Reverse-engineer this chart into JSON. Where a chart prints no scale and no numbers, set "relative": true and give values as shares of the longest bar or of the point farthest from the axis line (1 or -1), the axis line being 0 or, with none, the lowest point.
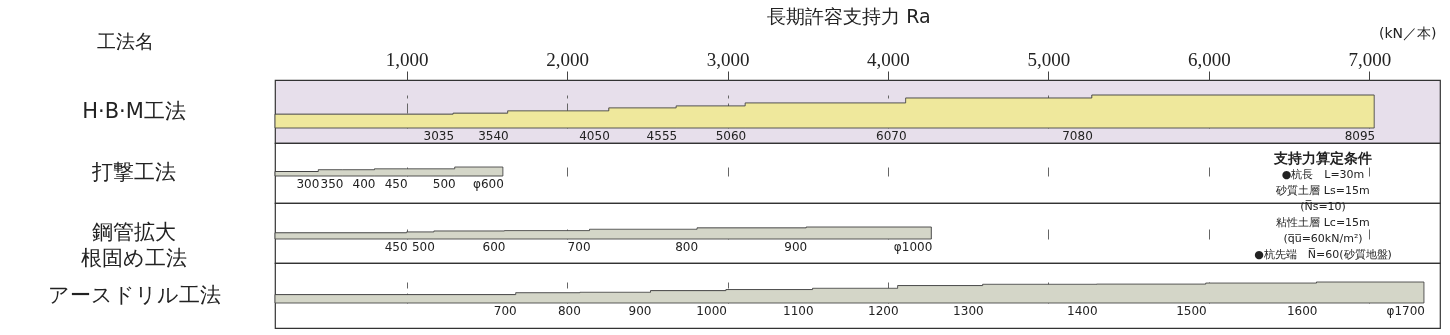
{
  "chart_data": [
    {
      "type": "area",
      "relative": true,
      "title": "長期許容支持力 Ra",
      "xlabel": "(kN／本)",
      "ylabel": "H·B·M工法",
      "grid": "x",
      "xlim": [
        180,
        7440
      ],
      "xticks": [
        {
          "value": 1000,
          "label": "1,000"
        },
        {
          "value": 2000,
          "label": "2,000"
        },
        {
          "value": 3000,
          "label": "3,000"
        },
        {
          "value": 4000,
          "label": "4,000"
        },
        {
          "value": 5000,
          "label": "5,000"
        },
        {
          "value": 6000,
          "label": "6,000"
        },
        {
          "value": 7000,
          "label": "7,000"
        }
      ],
      "series": [
        {
          "color": "#efe89c",
          "x": [
            180,
            1290,
            1290,
            1630,
            1630,
            2260,
            2260,
            2680,
            2680,
            3110,
            3110,
            4110,
            4110,
            5270,
            5270,
            7030
          ],
          "values": [
            0.42,
            0.42,
            0.45,
            0.45,
            0.52,
            0.52,
            0.61,
            0.61,
            0.67,
            0.67,
            0.76,
            0.76,
            0.91,
            0.91,
            1,
            1
          ]
        }
      ],
      "annotations": [
        "工法名",
        "3035",
        "3540",
        "4050",
        "4555",
        "5060",
        "6070",
        "7080",
        "8095"
      ]
    },
    {
      "type": "area",
      "relative": true,
      "ylabel": "打撃工法",
      "grid": "x",
      "tick_labels": false,
      "xlim": [
        180,
        7440
      ],
      "xticks": [
        1000,
        2000,
        3000,
        4000,
        5000,
        6000,
        7000
      ],
      "series": [
        {
          "color": "#d4d6c8",
          "x": [
            180,
            450,
            450,
            600,
            600,
            800,
            800,
            1000,
            1000,
            1300,
            1300,
            1600
          ],
          "values": [
            0.5,
            0.5,
            0.7,
            0.7,
            0.7,
            0.7,
            0.8,
            0.8,
            0.8,
            0.8,
            1,
            1
          ]
        }
      ],
      "annotations": [
        "300",
        "350",
        "400",
        "450",
        "500",
        "φ600"
      ]
    },
    {
      "type": "area",
      "relative": true,
      "ylabel": "鋼管拡大根固め工法",
      "grid": "x",
      "tick_labels": false,
      "xlim": [
        180,
        7440
      ],
      "xticks": [
        1000,
        2000,
        3000,
        4000,
        5000,
        6000,
        7000
      ],
      "series": [
        {
          "color": "#d4d6c8",
          "x": [
            180,
            1000,
            1000,
            1170,
            1170,
            1610,
            1610,
            2140,
            2140,
            2810,
            2810,
            3490,
            3490,
            4270
          ],
          "values": [
            0.52,
            0.52,
            0.59,
            0.59,
            0.67,
            0.67,
            0.7,
            0.7,
            0.81,
            0.81,
            0.93,
            0.93,
            1,
            1
          ]
        }
      ],
      "annotations": [
        "450",
        "500",
        "600",
        "700",
        "800",
        "900",
        "φ1000"
      ]
    },
    {
      "type": "area",
      "relative": true,
      "ylabel": "アースドリル工法",
      "grid": "x",
      "tick_labels": false,
      "xlim": [
        180,
        7440
      ],
      "xticks": [
        1000,
        2000,
        3000,
        4000,
        5000,
        6000,
        7000
      ],
      "series": [
        {
          "color": "#d4d6c8",
          "x": [
            180,
            1680,
            1680,
            2080,
            2080,
            2520,
            2520,
            2990,
            2990,
            3530,
            3530,
            4060,
            4060,
            4590,
            4590,
            5300,
            5300,
            5980,
            5980,
            6670,
            6670,
            7340
          ],
          "values": [
            0.4,
            0.4,
            0.49,
            0.49,
            0.51,
            0.51,
            0.59,
            0.59,
            0.64,
            0.64,
            0.7,
            0.7,
            0.83,
            0.83,
            0.89,
            0.89,
            0.9,
            0.9,
            0.95,
            0.95,
            1,
            1
          ]
        }
      ],
      "annotations": [
        "支持力算定条件",
        "●杭長　L=30m",
        "砂質土層 Ls=15m",
        "(N̅s=10)",
        "粘性土層 Lc=15m",
        "(q̅u̅=60kN/m²)",
        "●杭先端　N̅=60(砂質地盤)",
        "700",
        "800",
        "900",
        "1000",
        "1100",
        "1200",
        "1300",
        "1400",
        "1500",
        "1600",
        "φ1700"
      ]
    }
  ]
}
